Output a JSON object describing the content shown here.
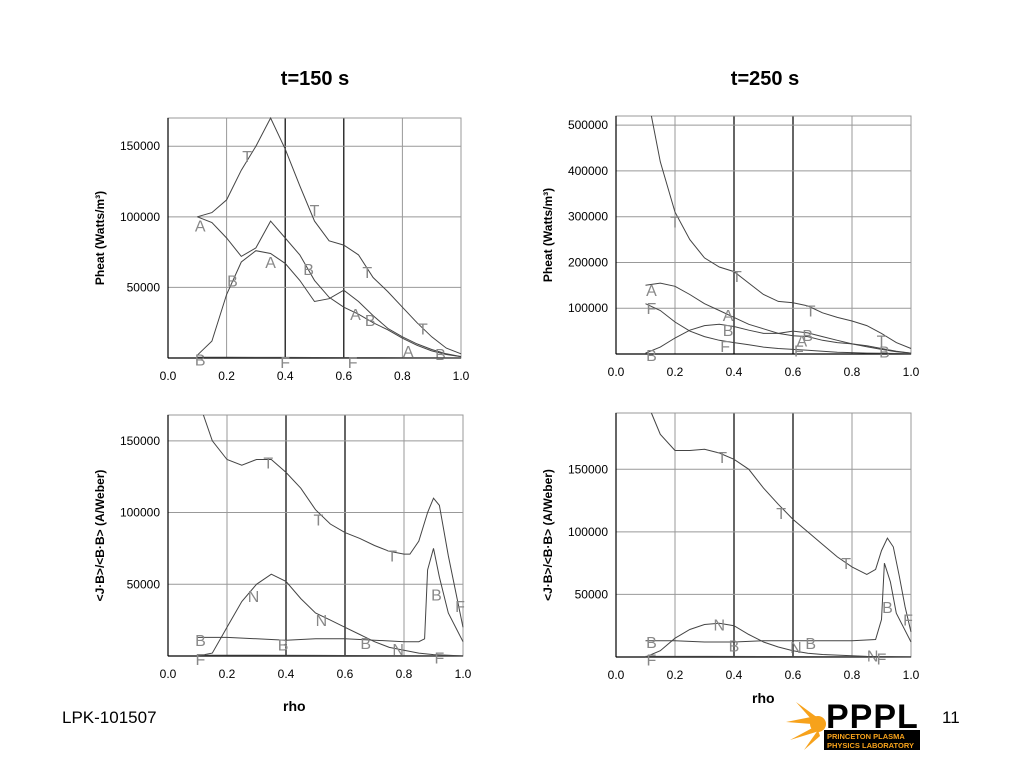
{
  "col_titles": [
    "t=150 s",
    "t=250 s"
  ],
  "xlabel": "rho",
  "footer": {
    "left": "LPK-101507",
    "page": "11"
  },
  "logo": {
    "letters": "PPPL",
    "line1": "PRINCETON PLASMA",
    "line2": "PHYSICS LABORATORY",
    "accent": "#f7a21b",
    "dark": "#000000"
  },
  "chart_data": [
    {
      "type": "line",
      "panel": "top-left",
      "title": "t=150 s",
      "ylabel": "Pheat (Watts/m³)",
      "xlim": [
        0,
        1
      ],
      "ylim": [
        0,
        170000
      ],
      "xticks": [
        "0.0",
        "0.2",
        "0.4",
        "0.6",
        "0.8",
        "1.0"
      ],
      "yticks": [
        {
          "v": 50000,
          "l": "50000"
        },
        {
          "v": 100000,
          "l": "100000"
        },
        {
          "v": 150000,
          "l": "150000"
        }
      ],
      "series": [
        {
          "name": "T",
          "x": [
            0.1,
            0.15,
            0.2,
            0.25,
            0.3,
            0.35,
            0.4,
            0.45,
            0.5,
            0.55,
            0.6,
            0.65,
            0.7,
            0.75,
            0.8,
            0.85,
            0.9,
            0.95,
            1.0
          ],
          "y": [
            100000,
            103000,
            112000,
            133000,
            150000,
            170000,
            148000,
            122000,
            97000,
            83000,
            80000,
            73000,
            57000,
            47000,
            36000,
            25000,
            15000,
            7000,
            3000
          ],
          "markers": [
            {
              "x": 0.27,
              "y": 143000
            },
            {
              "x": 0.5,
              "y": 105000
            },
            {
              "x": 0.68,
              "y": 61000
            },
            {
              "x": 0.87,
              "y": 21000
            }
          ]
        },
        {
          "name": "A",
          "x": [
            0.1,
            0.15,
            0.2,
            0.25,
            0.3,
            0.35,
            0.4,
            0.45,
            0.5,
            0.55,
            0.6,
            0.65,
            0.7,
            0.75,
            0.8,
            0.85,
            0.9,
            0.95,
            1.0
          ],
          "y": [
            100000,
            96000,
            85000,
            72000,
            78000,
            97000,
            85000,
            73000,
            55000,
            43000,
            36000,
            31000,
            25000,
            20000,
            14000,
            9000,
            5000,
            2500,
            1000
          ],
          "markers": [
            {
              "x": 0.11,
              "y": 94000
            },
            {
              "x": 0.35,
              "y": 68000
            },
            {
              "x": 0.64,
              "y": 31000
            },
            {
              "x": 0.82,
              "y": 5000
            }
          ]
        },
        {
          "name": "B",
          "x": [
            0.1,
            0.15,
            0.2,
            0.25,
            0.3,
            0.35,
            0.4,
            0.45,
            0.5,
            0.55,
            0.6,
            0.65,
            0.7,
            0.75,
            0.8,
            0.85,
            0.9,
            0.95,
            1.0
          ],
          "y": [
            2000,
            12000,
            45000,
            68000,
            76000,
            74000,
            67000,
            55000,
            40000,
            42000,
            48000,
            40000,
            30000,
            21000,
            15000,
            10000,
            6000,
            3000,
            1000
          ],
          "markers": [
            {
              "x": 0.11,
              "y": -1000
            },
            {
              "x": 0.22,
              "y": 55000
            },
            {
              "x": 0.48,
              "y": 63000
            },
            {
              "x": 0.69,
              "y": 27000
            },
            {
              "x": 0.93,
              "y": 3000
            }
          ]
        },
        {
          "name": "F",
          "x": [
            0.1,
            0.2,
            0.4,
            0.6,
            0.8,
            1.0
          ],
          "y": [
            500,
            500,
            400,
            300,
            200,
            100
          ],
          "markers": [
            {
              "x": 0.4,
              "y": -3000
            },
            {
              "x": 0.63,
              "y": -3000
            }
          ]
        }
      ]
    },
    {
      "type": "line",
      "panel": "top-right",
      "title": "t=250 s",
      "ylabel": "Pheat (Watts/m³)",
      "xlim": [
        0,
        1
      ],
      "ylim": [
        0,
        520000
      ],
      "xticks": [
        "0.0",
        "0.2",
        "0.4",
        "0.6",
        "0.8",
        "1.0"
      ],
      "yticks": [
        {
          "v": 100000,
          "l": "100000"
        },
        {
          "v": 200000,
          "l": "200000"
        },
        {
          "v": 300000,
          "l": "300000"
        },
        {
          "v": 400000,
          "l": "400000"
        },
        {
          "v": 500000,
          "l": "500000"
        }
      ],
      "series": [
        {
          "name": "T",
          "x": [
            0.12,
            0.15,
            0.2,
            0.25,
            0.3,
            0.35,
            0.4,
            0.45,
            0.5,
            0.55,
            0.6,
            0.65,
            0.7,
            0.75,
            0.8,
            0.85,
            0.9,
            0.95,
            1.0
          ],
          "y": [
            520000,
            420000,
            310000,
            250000,
            210000,
            190000,
            180000,
            155000,
            130000,
            115000,
            112000,
            105000,
            90000,
            80000,
            72000,
            62000,
            45000,
            25000,
            12000
          ],
          "markers": [
            {
              "x": 0.2,
              "y": 290000
            },
            {
              "x": 0.41,
              "y": 170000
            },
            {
              "x": 0.66,
              "y": 95000
            },
            {
              "x": 0.9,
              "y": 30000
            }
          ]
        },
        {
          "name": "A",
          "x": [
            0.1,
            0.15,
            0.2,
            0.25,
            0.3,
            0.35,
            0.4,
            0.45,
            0.5,
            0.55,
            0.6,
            0.65,
            0.7,
            0.75,
            0.8,
            0.85,
            0.9,
            0.95,
            1.0
          ],
          "y": [
            150000,
            155000,
            148000,
            130000,
            110000,
            95000,
            80000,
            65000,
            55000,
            45000,
            40000,
            38000,
            30000,
            25000,
            22000,
            18000,
            12000,
            6000,
            2000
          ],
          "markers": [
            {
              "x": 0.12,
              "y": 140000
            },
            {
              "x": 0.38,
              "y": 85000
            },
            {
              "x": 0.63,
              "y": 30000
            }
          ]
        },
        {
          "name": "B",
          "x": [
            0.1,
            0.15,
            0.2,
            0.25,
            0.3,
            0.35,
            0.4,
            0.45,
            0.5,
            0.55,
            0.6,
            0.65,
            0.7,
            0.75,
            0.8,
            0.85,
            0.9,
            0.95,
            1.0
          ],
          "y": [
            2000,
            15000,
            35000,
            52000,
            62000,
            65000,
            60000,
            52000,
            45000,
            45000,
            50000,
            46000,
            38000,
            30000,
            22000,
            16000,
            10000,
            5000,
            2000
          ],
          "markers": [
            {
              "x": 0.12,
              "y": -2000
            },
            {
              "x": 0.38,
              "y": 52000
            },
            {
              "x": 0.65,
              "y": 42000
            },
            {
              "x": 0.91,
              "y": 5000
            }
          ]
        },
        {
          "name": "F",
          "x": [
            0.1,
            0.15,
            0.2,
            0.25,
            0.3,
            0.35,
            0.4,
            0.45,
            0.5,
            0.55,
            0.6,
            0.65,
            0.7,
            0.75,
            0.8,
            0.85,
            0.9,
            0.95,
            1.0
          ],
          "y": [
            110000,
            95000,
            70000,
            50000,
            38000,
            30000,
            25000,
            20000,
            15000,
            12000,
            10000,
            8000,
            6000,
            4000,
            3000,
            2000,
            1500,
            1000,
            500
          ],
          "markers": [
            {
              "x": 0.12,
              "y": 100000
            },
            {
              "x": 0.37,
              "y": 18000
            },
            {
              "x": 0.62,
              "y": 8000
            }
          ]
        }
      ]
    },
    {
      "type": "line",
      "panel": "bottom-left",
      "title": "",
      "ylabel": "<J·B>/<B·B> (A/Weber)",
      "xlim": [
        0,
        1
      ],
      "ylim": [
        0,
        168000
      ],
      "xticks": [
        "0.0",
        "0.2",
        "0.4",
        "0.6",
        "0.8",
        "1.0"
      ],
      "yticks": [
        {
          "v": 50000,
          "l": "50000"
        },
        {
          "v": 100000,
          "l": "100000"
        },
        {
          "v": 150000,
          "l": "150000"
        }
      ],
      "series": [
        {
          "name": "T",
          "x": [
            0.12,
            0.15,
            0.2,
            0.25,
            0.3,
            0.35,
            0.4,
            0.45,
            0.5,
            0.55,
            0.6,
            0.65,
            0.7,
            0.75,
            0.8,
            0.82,
            0.85,
            0.88,
            0.9,
            0.92,
            0.95,
            0.98,
            1.0
          ],
          "y": [
            168000,
            150000,
            137000,
            133000,
            137000,
            137000,
            128000,
            117000,
            102000,
            92000,
            86000,
            82000,
            77000,
            73000,
            71000,
            71000,
            80000,
            100000,
            110000,
            105000,
            70000,
            40000,
            20000
          ],
          "markers": [
            {
              "x": 0.34,
              "y": 135000
            },
            {
              "x": 0.51,
              "y": 95000
            },
            {
              "x": 0.76,
              "y": 70000
            }
          ]
        },
        {
          "name": "N",
          "x": [
            0.1,
            0.15,
            0.2,
            0.25,
            0.3,
            0.35,
            0.4,
            0.45,
            0.5,
            0.55,
            0.6,
            0.65,
            0.7,
            0.75,
            0.8,
            0.85,
            0.9,
            0.95,
            1.0
          ],
          "y": [
            0,
            2000,
            20000,
            38000,
            50000,
            57000,
            52000,
            40000,
            30000,
            25000,
            20000,
            15000,
            10000,
            6000,
            4000,
            2000,
            1000,
            500,
            0
          ],
          "markers": [
            {
              "x": 0.29,
              "y": 42000
            },
            {
              "x": 0.52,
              "y": 25000
            },
            {
              "x": 0.78,
              "y": 5000
            }
          ]
        },
        {
          "name": "B",
          "x": [
            0.1,
            0.2,
            0.3,
            0.4,
            0.5,
            0.6,
            0.7,
            0.8,
            0.85,
            0.87,
            0.88,
            0.9,
            0.92,
            0.95,
            1.0
          ],
          "y": [
            13000,
            13000,
            12000,
            11000,
            12000,
            12000,
            11000,
            10000,
            10000,
            12000,
            60000,
            75000,
            55000,
            30000,
            10000
          ],
          "markers": [
            {
              "x": 0.11,
              "y": 11000
            },
            {
              "x": 0.39,
              "y": 8000
            },
            {
              "x": 0.67,
              "y": 9000
            },
            {
              "x": 0.91,
              "y": 43000
            }
          ]
        },
        {
          "name": "F",
          "x": [
            0.1,
            0.3,
            0.5,
            0.7,
            0.9,
            1.0
          ],
          "y": [
            500,
            500,
            400,
            300,
            200,
            100
          ],
          "markers": [
            {
              "x": 0.11,
              "y": -2000
            },
            {
              "x": 0.92,
              "y": -1000
            },
            {
              "x": 0.99,
              "y": 35000
            }
          ]
        }
      ]
    },
    {
      "type": "line",
      "panel": "bottom-right",
      "title": "",
      "ylabel": "<J·B>/<B·B> (A/Weber)",
      "xlim": [
        0,
        1
      ],
      "ylim": [
        0,
        195000
      ],
      "xticks": [
        "0.0",
        "0.2",
        "0.4",
        "0.6",
        "0.8",
        "1.0"
      ],
      "yticks": [
        {
          "v": 50000,
          "l": "50000"
        },
        {
          "v": 100000,
          "l": "100000"
        },
        {
          "v": 150000,
          "l": "150000"
        }
      ],
      "series": [
        {
          "name": "T",
          "x": [
            0.12,
            0.15,
            0.2,
            0.25,
            0.3,
            0.35,
            0.4,
            0.45,
            0.5,
            0.55,
            0.6,
            0.65,
            0.7,
            0.75,
            0.8,
            0.85,
            0.88,
            0.9,
            0.92,
            0.94,
            0.96,
            0.98,
            1.0
          ],
          "y": [
            195000,
            178000,
            165000,
            165000,
            166000,
            163000,
            158000,
            150000,
            135000,
            122000,
            110000,
            100000,
            90000,
            80000,
            72000,
            66000,
            70000,
            85000,
            95000,
            88000,
            65000,
            40000,
            20000
          ],
          "markers": [
            {
              "x": 0.36,
              "y": 160000
            },
            {
              "x": 0.56,
              "y": 115000
            },
            {
              "x": 0.78,
              "y": 75000
            }
          ]
        },
        {
          "name": "N",
          "x": [
            0.1,
            0.15,
            0.2,
            0.25,
            0.3,
            0.35,
            0.4,
            0.45,
            0.5,
            0.55,
            0.6,
            0.65,
            0.7,
            0.75,
            0.8,
            0.85,
            0.9,
            0.95,
            1.0
          ],
          "y": [
            0,
            5000,
            15000,
            22000,
            26000,
            27000,
            25000,
            18000,
            12000,
            8000,
            5000,
            3000,
            2000,
            1500,
            1000,
            500,
            300,
            200,
            100
          ],
          "markers": [
            {
              "x": 0.35,
              "y": 26000
            },
            {
              "x": 0.61,
              "y": 8000
            },
            {
              "x": 0.87,
              "y": 1000
            }
          ]
        },
        {
          "name": "B",
          "x": [
            0.1,
            0.2,
            0.3,
            0.4,
            0.5,
            0.6,
            0.7,
            0.8,
            0.88,
            0.9,
            0.91,
            0.93,
            0.95,
            1.0
          ],
          "y": [
            13000,
            13000,
            12000,
            12000,
            13000,
            13000,
            13000,
            13000,
            14000,
            30000,
            75000,
            60000,
            35000,
            12000
          ],
          "markers": [
            {
              "x": 0.12,
              "y": 12000
            },
            {
              "x": 0.4,
              "y": 9000
            },
            {
              "x": 0.66,
              "y": 11000
            },
            {
              "x": 0.92,
              "y": 40000
            }
          ]
        },
        {
          "name": "F",
          "x": [
            0.1,
            0.3,
            0.5,
            0.7,
            0.9,
            1.0
          ],
          "y": [
            500,
            500,
            400,
            300,
            200,
            100
          ],
          "markers": [
            {
              "x": 0.12,
              "y": -2000
            },
            {
              "x": 0.9,
              "y": -1000
            },
            {
              "x": 0.99,
              "y": 30000
            }
          ]
        }
      ]
    }
  ]
}
